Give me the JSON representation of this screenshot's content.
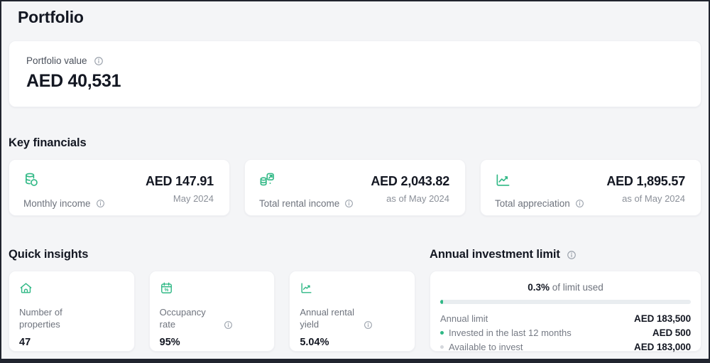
{
  "page": {
    "title": "Portfolio"
  },
  "portfolio_value": {
    "label": "Portfolio value",
    "value": "AED 40,531",
    "info_icon": "info-circle-icon"
  },
  "key_financials": {
    "heading": "Key financials",
    "cards": [
      {
        "icon": "coins-stack-icon",
        "label": "Monthly income",
        "value": "AED 147.91",
        "period": "May 2024",
        "has_info": true
      },
      {
        "icon": "rental-income-transfer-icon",
        "label": "Total rental income",
        "value": "AED 2,043.82",
        "period": "as of May 2024",
        "has_info": true
      },
      {
        "icon": "appreciation-chart-icon",
        "label": "Total appreciation",
        "value": "AED 1,895.57",
        "period": "as of May 2024",
        "has_info": true
      }
    ]
  },
  "quick_insights": {
    "heading": "Quick insights",
    "cards": [
      {
        "icon": "house-icon",
        "label": "Number of properties",
        "value": "47",
        "has_info": false
      },
      {
        "icon": "calendar-percent-icon",
        "label": "Occupancy rate",
        "value": "95%",
        "has_info": true
      },
      {
        "icon": "chart-up-icon",
        "label": "Annual rental yield",
        "value": "5.04%",
        "has_info": true
      }
    ]
  },
  "annual_limit": {
    "heading": "Annual investment limit",
    "used_percent_label": "0.3%",
    "used_suffix": " of limit used",
    "progress_percent": 0.3,
    "rows": [
      {
        "label": "Annual limit",
        "value": "AED 183,500",
        "bullet": "none"
      },
      {
        "label": "Invested in the last 12 months",
        "value": "AED 500",
        "bullet": "green"
      },
      {
        "label": "Available to invest",
        "value": "AED 183,000",
        "bullet": "gray"
      }
    ]
  },
  "colors": {
    "accent_green": "#2fb885",
    "text_dark": "#131722",
    "text_muted": "#6e737d",
    "page_background": "#f4f5f7",
    "progress_track": "#e9edf0",
    "bullet_gray": "#d4d7dc"
  }
}
